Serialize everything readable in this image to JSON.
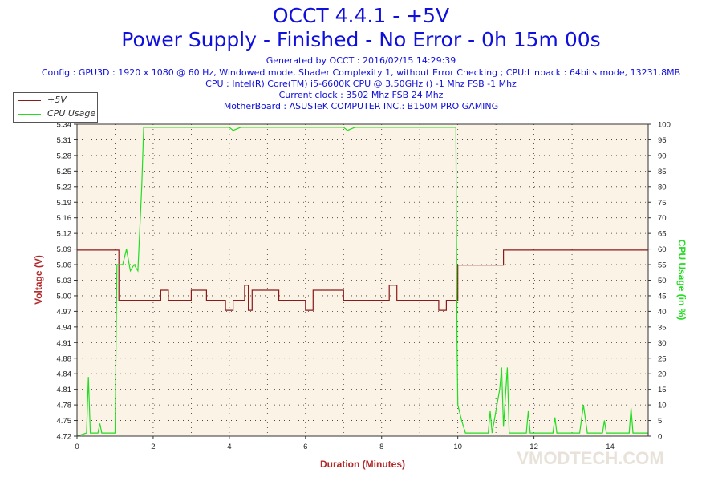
{
  "header": {
    "title": "OCCT 4.4.1 - +5V",
    "subtitle": "Power Supply - Finished - No Error - 0h 15m 00s",
    "generated": "Generated by OCCT : 2016/02/15 14:29:39",
    "config": "Config : GPU3D : 1920 x 1080 @ 60 Hz, Windowed mode, Shader Complexity 1, without Error Checking ; CPU:Linpack : 64bits mode, 13231.8MB",
    "cpu": "CPU : Intel(R) Core(TM) i5-6600K CPU @ 3.50GHz () -1 Mhz FSB -1 Mhz",
    "clock": "Current clock : 3502 Mhz FSB 24 Mhz",
    "motherboard": "MotherBoard : ASUSTeK COMPUTER INC.: B150M PRO GAMING"
  },
  "watermark": "VMODTECH.COM",
  "colors": {
    "title": "#1010dd",
    "voltage": "#8b1a1a",
    "cpu": "#22dd22",
    "plot_bg": "#fbf3e6",
    "axis_label": "#b32828",
    "grid": "#333333"
  },
  "chart_data": {
    "type": "line",
    "xlabel": "Duration (Minutes)",
    "ylabel_left": "Voltage (V)",
    "ylabel_right": "CPU Usage (in %)",
    "xlim": [
      0,
      15
    ],
    "ylim_left": [
      4.72,
      5.34
    ],
    "ylim_right": [
      0,
      100
    ],
    "x_ticks": [
      "0",
      "2",
      "4",
      "6",
      "8",
      "10",
      "12",
      "14"
    ],
    "y_ticks_left": [
      "4.72",
      "4.75",
      "4.78",
      "4.81",
      "4.84",
      "4.88",
      "4.91",
      "4.94",
      "4.97",
      "5.00",
      "5.03",
      "5.06",
      "5.09",
      "5.12",
      "5.16",
      "5.19",
      "5.22",
      "5.25",
      "5.28",
      "5.31",
      "5.34"
    ],
    "y_ticks_right": [
      "0",
      "5",
      "10",
      "15",
      "20",
      "25",
      "30",
      "35",
      "40",
      "45",
      "50",
      "55",
      "60",
      "65",
      "70",
      "75",
      "80",
      "85",
      "90",
      "95",
      "100"
    ],
    "grid": true,
    "legend_position": "top-left",
    "series": [
      {
        "name": "+5V",
        "axis": "left",
        "points": [
          [
            0,
            5.09
          ],
          [
            1.1,
            5.09
          ],
          [
            1.1,
            4.99
          ],
          [
            1.7,
            4.99
          ],
          [
            1.7,
            4.99
          ],
          [
            2.2,
            4.99
          ],
          [
            2.2,
            5.01
          ],
          [
            2.4,
            5.01
          ],
          [
            2.4,
            4.99
          ],
          [
            3.0,
            4.99
          ],
          [
            3.0,
            5.01
          ],
          [
            3.4,
            5.01
          ],
          [
            3.4,
            4.99
          ],
          [
            3.9,
            4.99
          ],
          [
            3.9,
            4.97
          ],
          [
            4.1,
            4.97
          ],
          [
            4.1,
            4.99
          ],
          [
            4.4,
            4.99
          ],
          [
            4.4,
            5.02
          ],
          [
            4.5,
            5.02
          ],
          [
            4.5,
            4.97
          ],
          [
            4.6,
            4.97
          ],
          [
            4.6,
            5.01
          ],
          [
            5.3,
            5.01
          ],
          [
            5.3,
            4.99
          ],
          [
            6.0,
            4.99
          ],
          [
            6.0,
            4.97
          ],
          [
            6.2,
            4.97
          ],
          [
            6.2,
            5.01
          ],
          [
            7.0,
            5.01
          ],
          [
            7.0,
            4.99
          ],
          [
            8.2,
            4.99
          ],
          [
            8.2,
            5.02
          ],
          [
            8.4,
            5.02
          ],
          [
            8.4,
            4.99
          ],
          [
            9.5,
            4.99
          ],
          [
            9.5,
            4.97
          ],
          [
            9.7,
            4.97
          ],
          [
            9.7,
            4.99
          ],
          [
            10.0,
            4.99
          ],
          [
            10.0,
            5.06
          ],
          [
            11.2,
            5.06
          ],
          [
            11.2,
            5.09
          ],
          [
            15.0,
            5.09
          ]
        ]
      },
      {
        "name": "CPU Usage",
        "axis": "right",
        "points": [
          [
            0,
            0
          ],
          [
            0.25,
            1
          ],
          [
            0.3,
            19
          ],
          [
            0.35,
            1
          ],
          [
            0.55,
            1
          ],
          [
            0.6,
            4
          ],
          [
            0.65,
            1
          ],
          [
            1.0,
            1
          ],
          [
            1.05,
            55
          ],
          [
            1.2,
            55
          ],
          [
            1.3,
            60
          ],
          [
            1.4,
            53
          ],
          [
            1.5,
            55
          ],
          [
            1.6,
            53
          ],
          [
            1.7,
            80
          ],
          [
            1.75,
            99
          ],
          [
            4.0,
            99
          ],
          [
            4.1,
            98
          ],
          [
            4.3,
            99
          ],
          [
            7.0,
            99
          ],
          [
            7.1,
            98
          ],
          [
            7.3,
            99
          ],
          [
            9.95,
            99
          ],
          [
            9.98,
            30
          ],
          [
            10.0,
            10
          ],
          [
            10.1,
            5
          ],
          [
            10.2,
            1
          ],
          [
            10.8,
            1
          ],
          [
            10.85,
            8
          ],
          [
            10.9,
            1
          ],
          [
            11.1,
            15
          ],
          [
            11.15,
            22
          ],
          [
            11.2,
            3
          ],
          [
            11.3,
            22
          ],
          [
            11.35,
            1
          ],
          [
            11.8,
            1
          ],
          [
            11.85,
            8
          ],
          [
            11.9,
            1
          ],
          [
            12.5,
            1
          ],
          [
            12.55,
            6
          ],
          [
            12.6,
            1
          ],
          [
            13.2,
            1
          ],
          [
            13.3,
            10
          ],
          [
            13.4,
            1
          ],
          [
            13.8,
            1
          ],
          [
            13.85,
            5
          ],
          [
            13.9,
            1
          ],
          [
            14.5,
            1
          ],
          [
            14.55,
            9
          ],
          [
            14.6,
            1
          ],
          [
            15.0,
            1
          ]
        ]
      }
    ]
  }
}
